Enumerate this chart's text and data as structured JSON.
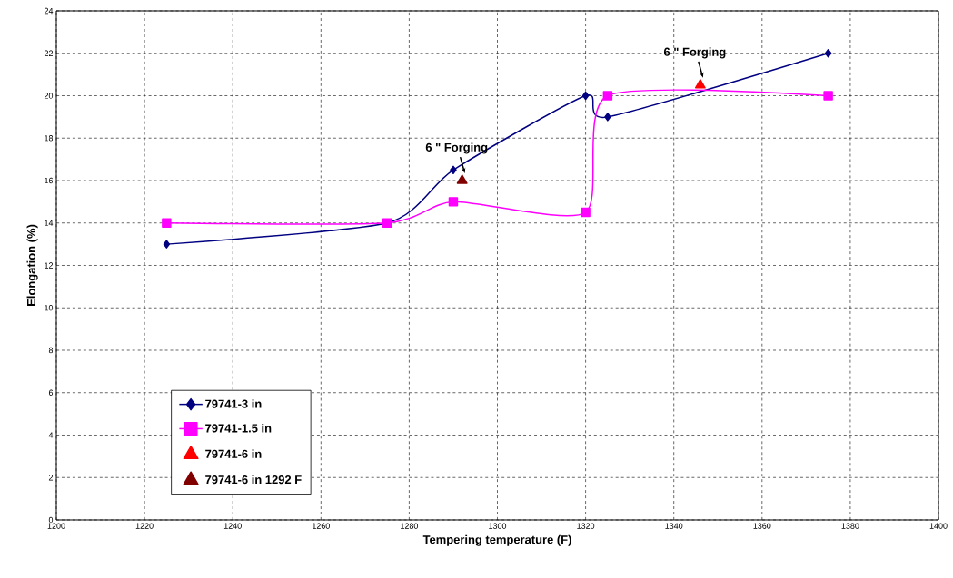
{
  "chart_data": {
    "type": "line",
    "xlabel": "Tempering temperature (F)",
    "ylabel": "Elongation (%)",
    "xlim": [
      1200,
      1400
    ],
    "xticks": [
      1200,
      1220,
      1240,
      1260,
      1280,
      1300,
      1320,
      1340,
      1360,
      1380,
      1400
    ],
    "ylim": [
      0,
      24
    ],
    "yticks": [
      0,
      2,
      4,
      6,
      8,
      10,
      12,
      14,
      16,
      18,
      20,
      22,
      24
    ],
    "grid": true,
    "legend": "bottom left",
    "line_style": "solid",
    "series": [
      {
        "name": "79741-3 in",
        "color": "#000080",
        "marker": "diamond",
        "x": [
          1225,
          1275,
          1290,
          1320,
          1325,
          1375
        ],
        "values": [
          13,
          14,
          16.5,
          20,
          19,
          22
        ]
      },
      {
        "name": "79741-1.5 in",
        "color": "#ff00ff",
        "marker": "square",
        "x": [
          1225,
          1275,
          1290,
          1320,
          1325,
          1375
        ],
        "values": [
          14,
          14,
          15,
          14.5,
          20,
          20
        ]
      },
      {
        "name": "79741-6 in",
        "color": "#ff0000",
        "marker": "triangle",
        "x": [
          1346
        ],
        "values": [
          20.5
        ]
      },
      {
        "name": "79741-6 in 1292 F",
        "color": "#800000",
        "marker": "triangle",
        "x": [
          1292
        ],
        "values": [
          16
        ]
      }
    ],
    "annotations": [
      {
        "text": "6 \" Forging",
        "x": 1292,
        "y": 16
      },
      {
        "text": "6 \" Forging",
        "x": 1346,
        "y": 20.5
      }
    ]
  }
}
